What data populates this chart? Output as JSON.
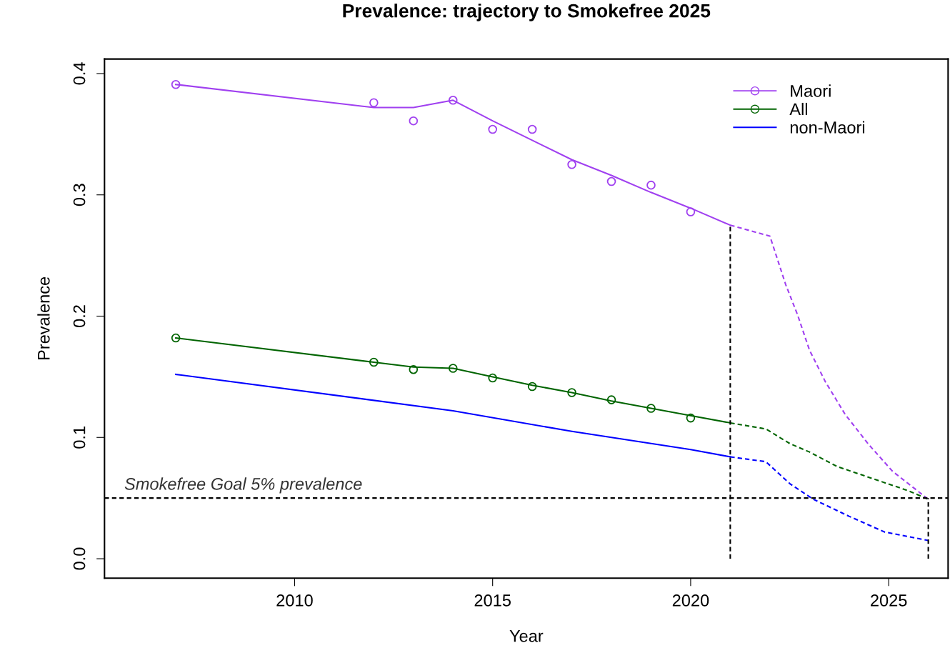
{
  "chart_data": {
    "type": "line",
    "title": "Prevalence: trajectory to Smokefree 2025",
    "xlabel": "Year",
    "ylabel": "Prevalence",
    "xlim": [
      2005.2,
      2026.5
    ],
    "ylim": [
      -0.016,
      0.412
    ],
    "xticks": [
      2010,
      2015,
      2020,
      2025
    ],
    "yticks": [
      {
        "value": 0,
        "label": "0.0"
      },
      0.1,
      0.2,
      0.3,
      0.4
    ],
    "grid": false,
    "legend": "top right",
    "series": [
      {
        "type": "scatter",
        "name": "Maori",
        "color": "#a040f0",
        "marker": "circle",
        "x": [
          2007,
          2012,
          2013,
          2014,
          2015,
          2016,
          2017,
          2018,
          2019,
          2020
        ],
        "values": [
          0.391,
          0.376,
          0.361,
          0.378,
          0.354,
          0.354,
          0.325,
          0.311,
          0.308,
          0.286
        ]
      },
      {
        "color": "#a040f0",
        "line_style": "solid",
        "x": [
          2007,
          2012,
          2013,
          2014,
          2015,
          2016,
          2017,
          2018,
          2019,
          2020,
          2021
        ],
        "values": [
          0.391,
          0.372,
          0.372,
          0.378,
          0.361,
          0.345,
          0.329,
          0.316,
          0.302,
          0.289,
          0.275
        ]
      },
      {
        "color": "#a040f0",
        "line_style": "dashed",
        "x": [
          2021,
          2022,
          2022.4,
          2022.7,
          2023,
          2023.4,
          2023.9,
          2024.5,
          2025.1,
          2026
        ],
        "values": [
          0.275,
          0.266,
          0.226,
          0.201,
          0.172,
          0.146,
          0.119,
          0.094,
          0.072,
          0.049
        ]
      },
      {
        "type": "scatter",
        "name": "All",
        "color": "#006400",
        "marker": "circle",
        "x": [
          2007,
          2012,
          2013,
          2014,
          2015,
          2016,
          2017,
          2018,
          2019,
          2020
        ],
        "values": [
          0.182,
          0.162,
          0.156,
          0.157,
          0.149,
          0.142,
          0.137,
          0.131,
          0.124,
          0.116
        ]
      },
      {
        "color": "#006400",
        "line_style": "solid",
        "x": [
          2007,
          2012,
          2013,
          2014,
          2015,
          2016,
          2017,
          2018,
          2019,
          2020,
          2021
        ],
        "values": [
          0.182,
          0.162,
          0.158,
          0.157,
          0.15,
          0.143,
          0.137,
          0.13,
          0.124,
          0.118,
          0.112
        ]
      },
      {
        "color": "#006400",
        "line_style": "dashed",
        "x": [
          2021,
          2021.9,
          2022.5,
          2023,
          2023.7,
          2024.6,
          2025.5,
          2026
        ],
        "values": [
          0.112,
          0.107,
          0.095,
          0.088,
          0.076,
          0.066,
          0.056,
          0.049
        ]
      },
      {
        "name": "non-Maori",
        "color": "#0000ff",
        "line_style": "solid",
        "x": [
          2007,
          2014,
          2017,
          2020,
          2021
        ],
        "values": [
          0.152,
          0.122,
          0.105,
          0.09,
          0.084
        ]
      },
      {
        "color": "#0000ff",
        "line_style": "dashed",
        "x": [
          2021,
          2021.9,
          2022.5,
          2023.1,
          2024,
          2024.9,
          2026
        ],
        "values": [
          0.084,
          0.08,
          0.062,
          0.049,
          0.035,
          0.022,
          0.015
        ]
      },
      {
        "color": "#000000",
        "line_style": "dashed",
        "x": [
          2021,
          2021
        ],
        "values": [
          0,
          0.276
        ]
      },
      {
        "color": "#000000",
        "line_style": "dashed",
        "x": [
          2026,
          2026
        ],
        "values": [
          0,
          0.05
        ]
      }
    ],
    "ref_lines": [
      {
        "axis": "y",
        "value": 0.05,
        "label": "Smokefree Goal 5% prevalence",
        "color": "#000000",
        "line_style": "dashed"
      }
    ]
  }
}
